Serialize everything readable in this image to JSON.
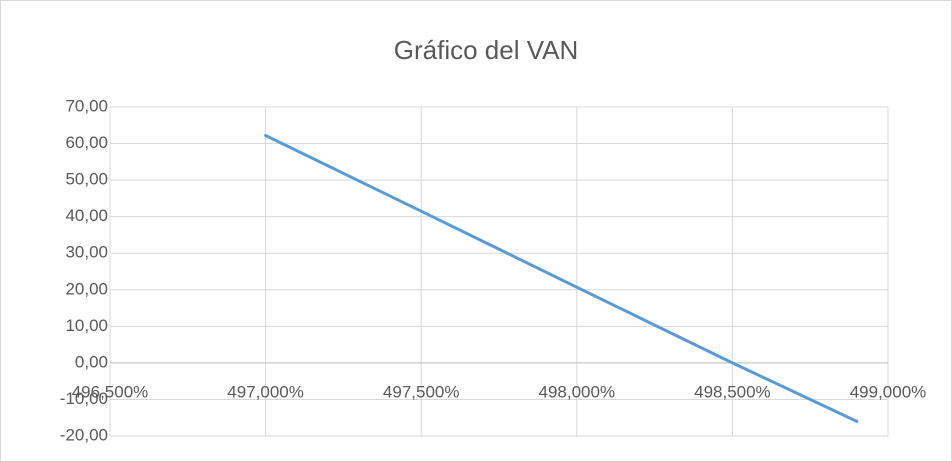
{
  "chart_data": {
    "type": "line",
    "title": "Gráfico del VAN",
    "x": [
      497,
      497.5,
      498,
      498.5,
      498.9
    ],
    "values": [
      62.2,
      41.5,
      20.7,
      0,
      -16
    ],
    "color": "#5b9bd5",
    "xlim": [
      496.5,
      499
    ],
    "xticks": [
      {
        "value": 496.5,
        "label": "496,500%"
      },
      {
        "value": 497,
        "label": "497,000%"
      },
      {
        "value": 497.5,
        "label": "497,500%"
      },
      {
        "value": 498,
        "label": "498,000%"
      },
      {
        "value": 498.5,
        "label": "498,500%"
      },
      {
        "value": 499,
        "label": "499,000%"
      }
    ],
    "ylim": [
      -20,
      70
    ],
    "yticks": [
      {
        "value": -20,
        "label": "-20,00"
      },
      {
        "value": -10,
        "label": "-10,00"
      },
      {
        "value": 0,
        "label": "0,00"
      },
      {
        "value": 10,
        "label": "10,00"
      },
      {
        "value": 20,
        "label": "20,00"
      },
      {
        "value": 30,
        "label": "30,00"
      },
      {
        "value": 40,
        "label": "40,00"
      },
      {
        "value": 50,
        "label": "50,00"
      },
      {
        "value": 60,
        "label": "60,00"
      },
      {
        "value": 70,
        "label": "70,00"
      }
    ],
    "grid": true
  }
}
